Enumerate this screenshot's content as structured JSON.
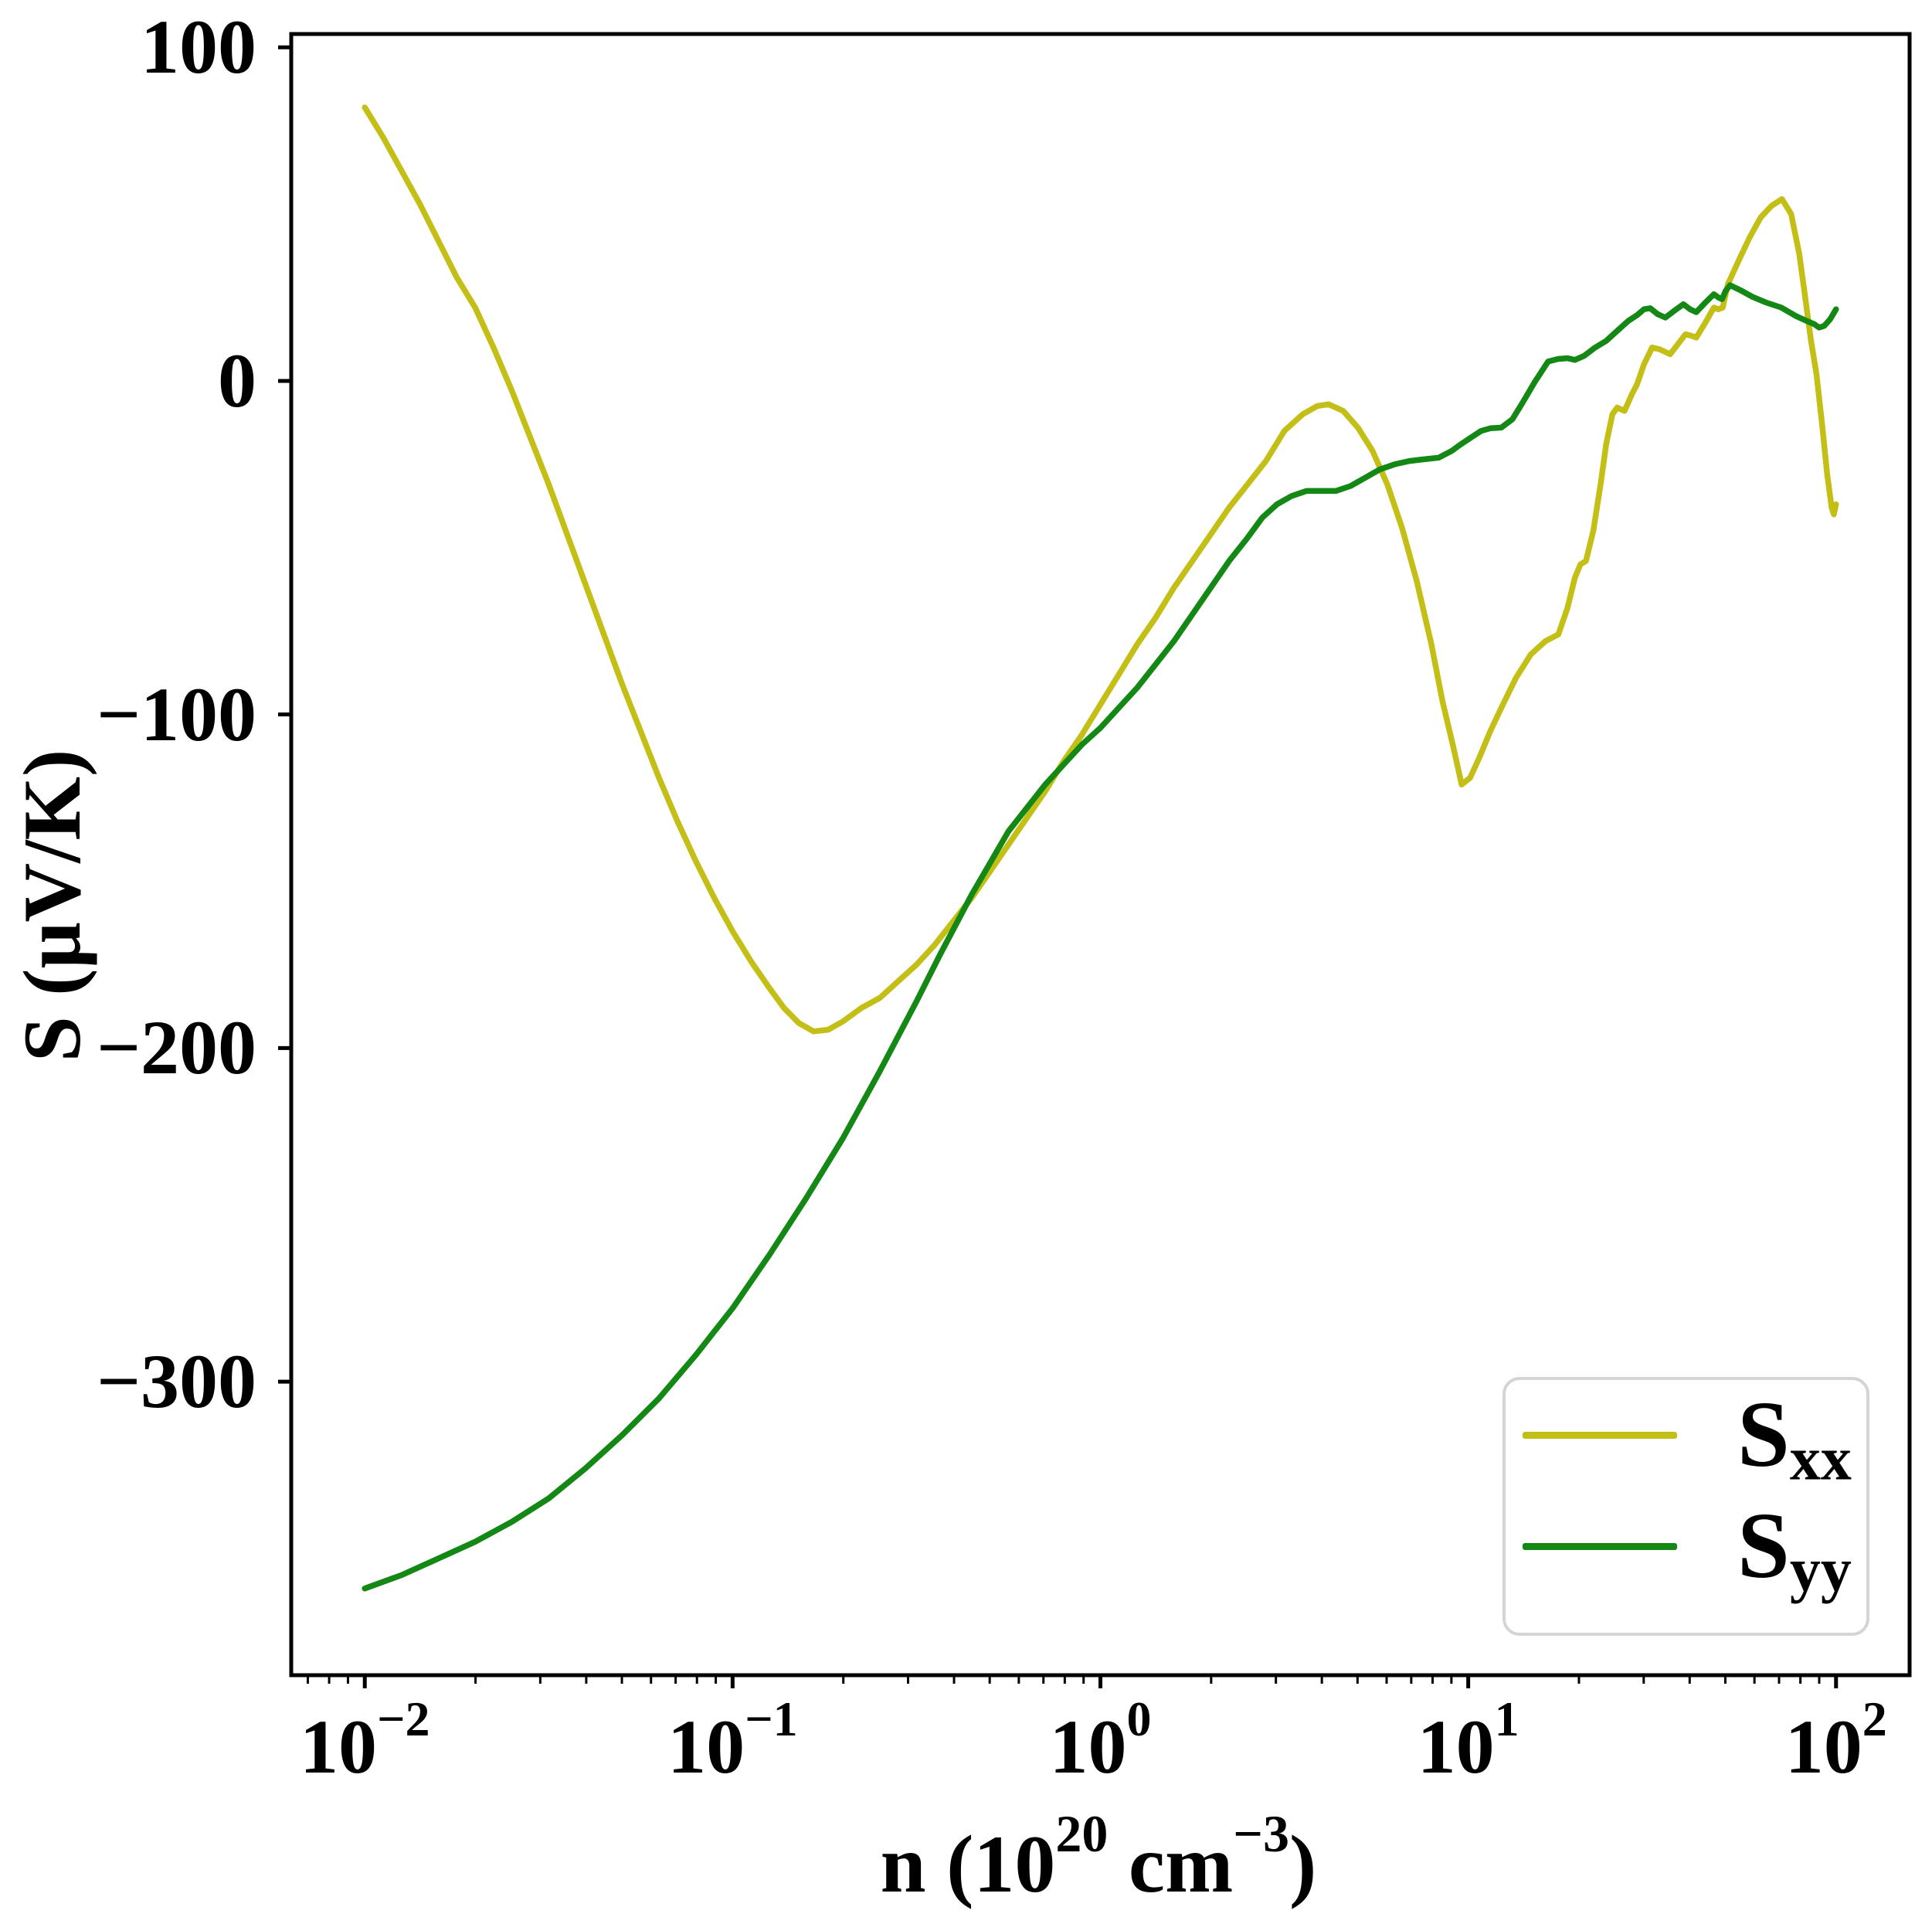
{
  "figure": {
    "background": "#ffffff"
  },
  "axes": {
    "ylabel": "S (μV/K)",
    "xlabel_parts": {
      "p1": "n (10",
      "e1": "20",
      "p2": " cm",
      "e2": "−3",
      "p3": ")"
    }
  },
  "legend": {
    "entries": [
      {
        "label_main": "S",
        "label_sub": "xx"
      },
      {
        "label_main": "S",
        "label_sub": "yy"
      }
    ]
  },
  "chart_data": {
    "type": "line",
    "title": "",
    "xlabel": "n (10^20 cm^-3)",
    "ylabel": "S (μV/K)",
    "x_scale": "log10",
    "xlim_log": [
      -2.2,
      2.2
    ],
    "ylim": [
      -388,
      104
    ],
    "grid": false,
    "legend_position": "lower right",
    "x_ticks": [
      {
        "exponent": "−2",
        "log": -2
      },
      {
        "exponent": "−1",
        "log": -1
      },
      {
        "exponent": "0",
        "log": 0
      },
      {
        "exponent": "1",
        "log": 1
      },
      {
        "exponent": "2",
        "log": 2
      }
    ],
    "y_ticks": [
      {
        "label": "100",
        "value": 100
      },
      {
        "label": "0",
        "value": 0
      },
      {
        "label": "−100",
        "value": -100
      },
      {
        "label": "−200",
        "value": -200
      },
      {
        "label": "−300",
        "value": -300
      }
    ],
    "series": [
      {
        "name": "Sxx",
        "color": "#c3bf17",
        "points_log10x_vs_S": [
          [
            -2.0,
            82
          ],
          [
            -1.95,
            73
          ],
          [
            -1.9,
            63
          ],
          [
            -1.85,
            53
          ],
          [
            -1.8,
            42
          ],
          [
            -1.75,
            31
          ],
          [
            -1.7,
            22
          ],
          [
            -1.65,
            10
          ],
          [
            -1.6,
            -3
          ],
          [
            -1.55,
            -17
          ],
          [
            -1.5,
            -31
          ],
          [
            -1.45,
            -46
          ],
          [
            -1.4,
            -61
          ],
          [
            -1.35,
            -76
          ],
          [
            -1.3,
            -91
          ],
          [
            -1.25,
            -105
          ],
          [
            -1.2,
            -119
          ],
          [
            -1.15,
            -132
          ],
          [
            -1.1,
            -144
          ],
          [
            -1.05,
            -155
          ],
          [
            -1.0,
            -165
          ],
          [
            -0.95,
            -174
          ],
          [
            -0.9,
            -182
          ],
          [
            -0.86,
            -188
          ],
          [
            -0.82,
            -192.5
          ],
          [
            -0.78,
            -195
          ],
          [
            -0.74,
            -194.5
          ],
          [
            -0.7,
            -192
          ],
          [
            -0.65,
            -188
          ],
          [
            -0.6,
            -185
          ],
          [
            -0.55,
            -180
          ],
          [
            -0.5,
            -175
          ],
          [
            -0.45,
            -169
          ],
          [
            -0.4,
            -162
          ],
          [
            -0.35,
            -155
          ],
          [
            -0.3,
            -147
          ],
          [
            -0.25,
            -139
          ],
          [
            -0.2,
            -131
          ],
          [
            -0.15,
            -123
          ],
          [
            -0.1,
            -114
          ],
          [
            -0.05,
            -106
          ],
          [
            0.0,
            -97
          ],
          [
            0.05,
            -88
          ],
          [
            0.1,
            -79
          ],
          [
            0.15,
            -71
          ],
          [
            0.2,
            -62
          ],
          [
            0.25,
            -54
          ],
          [
            0.3,
            -46
          ],
          [
            0.35,
            -38
          ],
          [
            0.4,
            -31
          ],
          [
            0.45,
            -24
          ],
          [
            0.5,
            -15
          ],
          [
            0.55,
            -10
          ],
          [
            0.59,
            -7.5
          ],
          [
            0.62,
            -7
          ],
          [
            0.66,
            -9
          ],
          [
            0.7,
            -14
          ],
          [
            0.74,
            -21
          ],
          [
            0.78,
            -31
          ],
          [
            0.82,
            -44
          ],
          [
            0.86,
            -60
          ],
          [
            0.9,
            -79
          ],
          [
            0.93,
            -96
          ],
          [
            0.96,
            -110
          ],
          [
            0.982,
            -121
          ],
          [
            1.005,
            -119
          ],
          [
            1.03,
            -113
          ],
          [
            1.06,
            -105
          ],
          [
            1.09,
            -98
          ],
          [
            1.13,
            -89
          ],
          [
            1.17,
            -82
          ],
          [
            1.21,
            -78
          ],
          [
            1.245,
            -76
          ],
          [
            1.27,
            -68
          ],
          [
            1.29,
            -59
          ],
          [
            1.305,
            -55
          ],
          [
            1.32,
            -54
          ],
          [
            1.34,
            -45
          ],
          [
            1.36,
            -31
          ],
          [
            1.375,
            -19
          ],
          [
            1.392,
            -10
          ],
          [
            1.405,
            -8
          ],
          [
            1.425,
            -9
          ],
          [
            1.445,
            -4
          ],
          [
            1.459,
            -1
          ],
          [
            1.478,
            5
          ],
          [
            1.5,
            10
          ],
          [
            1.52,
            9.5
          ],
          [
            1.549,
            8
          ],
          [
            1.57,
            11
          ],
          [
            1.591,
            14
          ],
          [
            1.607,
            13.5
          ],
          [
            1.62,
            13
          ],
          [
            1.645,
            17.5
          ],
          [
            1.668,
            22
          ],
          [
            1.68,
            21.5
          ],
          [
            1.692,
            22
          ],
          [
            1.706,
            29
          ],
          [
            1.735,
            36
          ],
          [
            1.765,
            43
          ],
          [
            1.795,
            49
          ],
          [
            1.825,
            52.5
          ],
          [
            1.853,
            54.5
          ],
          [
            1.878,
            50
          ],
          [
            1.9,
            38
          ],
          [
            1.915,
            26
          ],
          [
            1.932,
            12
          ],
          [
            1.947,
            2
          ],
          [
            1.962,
            -13
          ],
          [
            1.976,
            -28
          ],
          [
            1.988,
            -38
          ],
          [
            1.994,
            -40
          ],
          [
            2.0,
            -37
          ]
        ]
      },
      {
        "name": "Syy",
        "color": "#148814",
        "points_log10x_vs_S": [
          [
            -2.0,
            -362
          ],
          [
            -1.9,
            -358
          ],
          [
            -1.8,
            -353
          ],
          [
            -1.7,
            -348
          ],
          [
            -1.6,
            -342
          ],
          [
            -1.5,
            -335
          ],
          [
            -1.4,
            -326
          ],
          [
            -1.3,
            -316
          ],
          [
            -1.2,
            -305
          ],
          [
            -1.1,
            -292
          ],
          [
            -1.0,
            -278
          ],
          [
            -0.9,
            -262
          ],
          [
            -0.8,
            -245
          ],
          [
            -0.7,
            -227
          ],
          [
            -0.6,
            -207
          ],
          [
            -0.5,
            -186
          ],
          [
            -0.436,
            -172
          ],
          [
            -0.35,
            -154
          ],
          [
            -0.25,
            -135
          ],
          [
            -0.15,
            -121
          ],
          [
            -0.1,
            -115
          ],
          [
            -0.05,
            -109
          ],
          [
            0.0,
            -104
          ],
          [
            0.05,
            -98
          ],
          [
            0.1,
            -92
          ],
          [
            0.15,
            -85
          ],
          [
            0.2,
            -78
          ],
          [
            0.25,
            -70
          ],
          [
            0.3,
            -62
          ],
          [
            0.35,
            -54
          ],
          [
            0.4,
            -47
          ],
          [
            0.44,
            -41
          ],
          [
            0.48,
            -37
          ],
          [
            0.52,
            -34.5
          ],
          [
            0.56,
            -33
          ],
          [
            0.6,
            -33
          ],
          [
            0.64,
            -33
          ],
          [
            0.68,
            -31.5
          ],
          [
            0.72,
            -29
          ],
          [
            0.76,
            -26.5
          ],
          [
            0.8,
            -25
          ],
          [
            0.84,
            -24
          ],
          [
            0.88,
            -23.5
          ],
          [
            0.92,
            -23
          ],
          [
            0.955,
            -21
          ],
          [
            0.98,
            -19
          ],
          [
            1.007,
            -17
          ],
          [
            1.035,
            -15
          ],
          [
            1.06,
            -14.2
          ],
          [
            1.09,
            -14
          ],
          [
            1.12,
            -11.5
          ],
          [
            1.148,
            -6.5
          ],
          [
            1.18,
            -0.5
          ],
          [
            1.217,
            5.8
          ],
          [
            1.245,
            6.6
          ],
          [
            1.27,
            6.8
          ],
          [
            1.29,
            6.3
          ],
          [
            1.315,
            7.5
          ],
          [
            1.345,
            10
          ],
          [
            1.375,
            12
          ],
          [
            1.405,
            15
          ],
          [
            1.435,
            18
          ],
          [
            1.459,
            19.7
          ],
          [
            1.478,
            21.5
          ],
          [
            1.495,
            21.8
          ],
          [
            1.515,
            20
          ],
          [
            1.536,
            19
          ],
          [
            1.56,
            21
          ],
          [
            1.585,
            23
          ],
          [
            1.603,
            21.5
          ],
          [
            1.62,
            20.6
          ],
          [
            1.645,
            23.5
          ],
          [
            1.668,
            26
          ],
          [
            1.68,
            25
          ],
          [
            1.69,
            24.5
          ],
          [
            1.7,
            27
          ],
          [
            1.712,
            28.7
          ],
          [
            1.74,
            27.2
          ],
          [
            1.773,
            25.2
          ],
          [
            1.81,
            23.5
          ],
          [
            1.851,
            22
          ],
          [
            1.89,
            19.5
          ],
          [
            1.92,
            18
          ],
          [
            1.941,
            17
          ],
          [
            1.954,
            16
          ],
          [
            1.968,
            16.5
          ],
          [
            1.984,
            18.5
          ],
          [
            2.0,
            21.5
          ]
        ]
      }
    ]
  }
}
